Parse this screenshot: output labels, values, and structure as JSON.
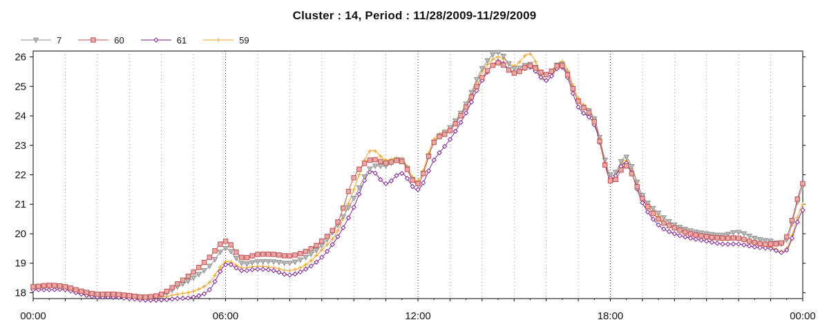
{
  "chart_data": {
    "type": "line",
    "title": "Cluster : 14, Period : 11/28/2009-11/29/2009",
    "xlabel": "",
    "ylabel": "",
    "x_ticks": [
      "00:00",
      "06:00",
      "12:00",
      "18:00",
      "00:00"
    ],
    "x_range_hours": [
      0,
      24
    ],
    "y_ticks": [
      "18",
      "19",
      "20",
      "21",
      "22",
      "23",
      "24",
      "25",
      "26"
    ],
    "ylim": [
      17.8,
      26.2
    ],
    "grid": "dotted vertical",
    "legend_position": "top-left",
    "x_hours": [
      0,
      0.5,
      1,
      1.5,
      2,
      2.5,
      3,
      3.5,
      4,
      4.5,
      5,
      5.5,
      6,
      6.5,
      7,
      7.5,
      8,
      8.5,
      9,
      9.5,
      10,
      10.5,
      11,
      11.5,
      12,
      12.5,
      13,
      13.5,
      14,
      14.5,
      15,
      15.5,
      16,
      16.5,
      17,
      17.5,
      18,
      18.5,
      19,
      19.5,
      20,
      20.5,
      21,
      21.5,
      22,
      22.5,
      23,
      23.5,
      24
    ],
    "series": [
      {
        "name": "7",
        "color": "#909090",
        "marker": "triangle-down",
        "values": [
          18.2,
          18.2,
          18.2,
          18.05,
          17.95,
          17.95,
          17.9,
          17.85,
          17.9,
          18.2,
          18.5,
          18.9,
          19.5,
          19.0,
          19.05,
          19.05,
          19.0,
          19.2,
          19.6,
          20.3,
          21.2,
          22.2,
          22.3,
          22.5,
          21.7,
          23.1,
          23.6,
          24.4,
          25.6,
          26.15,
          25.6,
          25.75,
          25.4,
          25.75,
          24.5,
          23.9,
          22.0,
          22.6,
          21.3,
          20.7,
          20.3,
          20.1,
          20.0,
          19.95,
          20.05,
          19.85,
          19.75,
          19.8,
          21.6
        ]
      },
      {
        "name": "60",
        "color": "#c05050",
        "marker": "square",
        "values": [
          18.2,
          18.25,
          18.2,
          18.05,
          17.95,
          17.95,
          17.9,
          17.85,
          17.95,
          18.3,
          18.7,
          19.2,
          19.75,
          19.2,
          19.3,
          19.3,
          19.25,
          19.4,
          19.75,
          20.4,
          21.9,
          22.5,
          22.4,
          22.45,
          21.7,
          23.1,
          23.5,
          24.3,
          25.3,
          25.8,
          25.45,
          25.7,
          25.4,
          25.7,
          24.5,
          23.8,
          21.8,
          22.3,
          21.2,
          20.5,
          20.2,
          20.0,
          19.9,
          19.85,
          19.85,
          19.7,
          19.65,
          19.9,
          21.7
        ]
      },
      {
        "name": "61",
        "color": "#7a1f8f",
        "marker": "diamond",
        "values": [
          18.1,
          18.1,
          18.1,
          17.95,
          17.85,
          17.85,
          17.8,
          17.75,
          17.75,
          17.8,
          17.85,
          18.1,
          18.95,
          18.75,
          18.8,
          18.75,
          18.6,
          18.8,
          19.2,
          19.9,
          20.9,
          22.1,
          21.7,
          22.05,
          21.5,
          22.5,
          23.2,
          24.1,
          25.2,
          25.85,
          25.45,
          25.65,
          25.2,
          25.65,
          24.3,
          23.7,
          21.9,
          22.4,
          21.05,
          20.3,
          20.0,
          19.85,
          19.75,
          19.65,
          19.65,
          19.55,
          19.5,
          19.45,
          20.8
        ]
      },
      {
        "name": "59",
        "color": "#f0a020",
        "marker": "plus",
        "values": [
          18.15,
          18.2,
          18.15,
          18.05,
          17.95,
          17.95,
          17.9,
          17.85,
          17.85,
          17.95,
          18.05,
          18.35,
          19.05,
          18.85,
          18.9,
          18.85,
          18.75,
          18.95,
          19.45,
          20.1,
          21.5,
          22.8,
          22.5,
          22.55,
          21.8,
          23.2,
          23.6,
          24.35,
          25.5,
          26.0,
          25.7,
          26.1,
          25.2,
          25.85,
          24.6,
          23.9,
          21.9,
          22.5,
          21.3,
          20.6,
          20.2,
          20.0,
          19.9,
          19.8,
          19.85,
          19.65,
          19.55,
          19.5,
          21.0
        ]
      }
    ]
  }
}
